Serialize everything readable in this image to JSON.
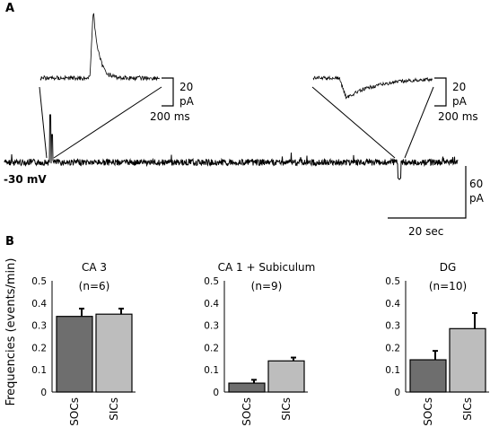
{
  "panels": {
    "a": "A",
    "b": "B"
  },
  "panel_a": {
    "holding_potential": "-30 mV",
    "inset_left_scale": {
      "amplitude": "20",
      "unit": "pA",
      "time": "200 ms"
    },
    "inset_right_scale": {
      "amplitude": "20",
      "unit": "pA",
      "time": "200 ms"
    },
    "main_scale": {
      "amplitude": "60",
      "unit": "pA",
      "time": "20 sec"
    }
  },
  "y_axis_title": "Frequencies (events/min)",
  "chart_data": [
    {
      "type": "bar",
      "title": "CA 3",
      "subtitle": "(n=6)",
      "categories": [
        "SOCs",
        "SICs"
      ],
      "values": [
        0.34,
        0.35
      ],
      "errors": [
        0.035,
        0.025
      ],
      "colors": [
        "#6e6e6e",
        "#bdbdbd"
      ],
      "ylim": [
        0,
        0.5
      ],
      "yticks": [
        "0",
        "0.1",
        "0.2",
        "0.3",
        "0.4",
        "0.5"
      ]
    },
    {
      "type": "bar",
      "title": "CA 1 + Subiculum",
      "subtitle": "(n=9)",
      "categories": [
        "SOCs",
        "SICs"
      ],
      "values": [
        0.04,
        0.14
      ],
      "errors": [
        0.015,
        0.015
      ],
      "colors": [
        "#6e6e6e",
        "#bdbdbd"
      ],
      "ylim": [
        0,
        0.5
      ],
      "yticks": [
        "0",
        "0.1",
        "0.2",
        "0.3",
        "0.4",
        "0.5"
      ]
    },
    {
      "type": "bar",
      "title": "DG",
      "subtitle": "(n=10)",
      "categories": [
        "SOCs",
        "SICs"
      ],
      "values": [
        0.145,
        0.285
      ],
      "errors": [
        0.04,
        0.07
      ],
      "colors": [
        "#6e6e6e",
        "#bdbdbd"
      ],
      "ylim": [
        0,
        0.5
      ],
      "yticks": [
        "0",
        "0.1",
        "0.2",
        "0.3",
        "0.4",
        "0.5"
      ]
    }
  ]
}
